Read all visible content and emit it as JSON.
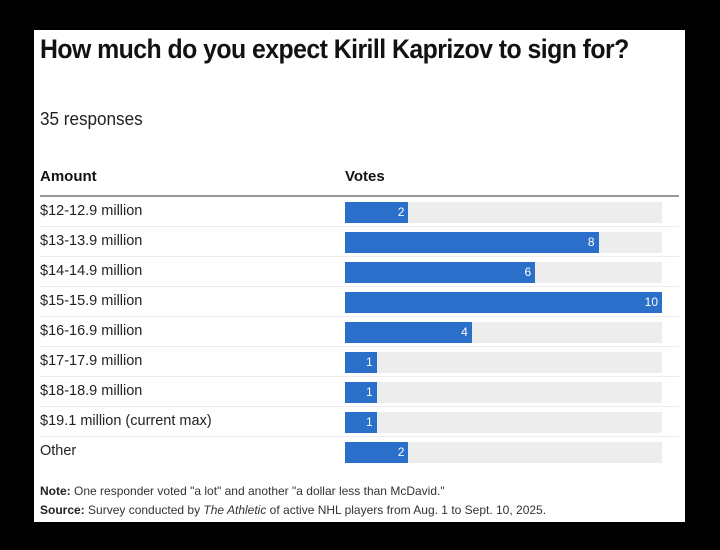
{
  "header": {
    "title": "How much do you expect Kirill Kaprizov to sign for?",
    "subtitle": "35 responses"
  },
  "table": {
    "columns": [
      "Amount",
      "Votes"
    ]
  },
  "footer": {
    "note_label": "Note:",
    "note_text": " One responder voted \"a lot\" and another \"a dollar less than McDavid.\"",
    "source_label": "Source:",
    "source_pre": " Survey conducted by ",
    "source_italic": "The Athletic",
    "source_post": " of active NHL players from Aug. 1 to Sept. 10, 2025."
  },
  "colors": {
    "bar": "#2a6fc9",
    "track": "#ededed",
    "frame": "#000000"
  },
  "chart_data": {
    "type": "bar",
    "orientation": "horizontal",
    "title": "How much do you expect Kirill Kaprizov to sign for?",
    "subtitle": "35 responses",
    "xlabel": "Votes",
    "ylabel": "Amount",
    "categories": [
      "$12-12.9 million",
      "$13-13.9 million",
      "$14-14.9 million",
      "$15-15.9 million",
      "$16-16.9 million",
      "$17-17.9 million",
      "$18-18.9 million",
      "$19.1 million (current max)",
      "Other"
    ],
    "values": [
      2,
      8,
      6,
      10,
      4,
      1,
      1,
      1,
      2
    ],
    "xlim": [
      0,
      10
    ],
    "grid": false,
    "legend": null
  }
}
